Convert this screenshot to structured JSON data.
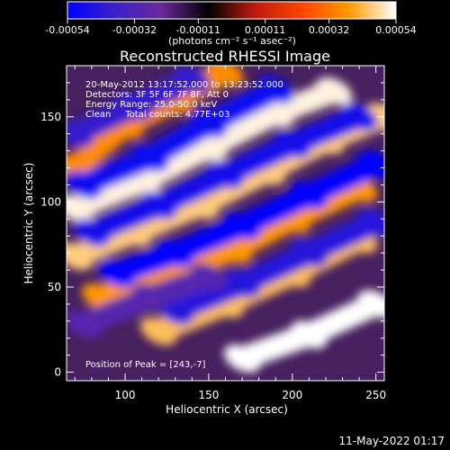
{
  "chart_data": {
    "type": "heatmap",
    "title": "Reconstructed RHESSI Image",
    "xlabel": "Heliocentric X (arcsec)",
    "ylabel": "Heliocentric Y (arcsec)",
    "xlim": [
      65,
      255
    ],
    "ylim": [
      -5,
      180
    ],
    "x_ticks": [
      100,
      150,
      200,
      250
    ],
    "y_ticks": [
      0,
      50,
      100,
      150
    ],
    "x_tick_labels": [
      "100",
      "150",
      "200",
      "250"
    ],
    "y_tick_labels": [
      "0",
      "50",
      "100",
      "150"
    ],
    "colorbar": {
      "range": [
        -0.00054,
        0.00054
      ],
      "tick_values": [
        -0.00054,
        -0.00032,
        -0.00011,
        0.00011,
        0.00032,
        0.00054
      ],
      "tick_labels": [
        "-0.00054",
        "-0.00032",
        "-0.00011",
        "0.00011",
        "0.00032",
        "0.00054"
      ],
      "unit_text": "(photons cm⁻² s⁻¹ asec⁻²)",
      "colors": [
        "#0000ff",
        "#3b20c8",
        "#6a2a9a",
        "#000000",
        "#c01a10",
        "#ff4400",
        "#ff9a00",
        "#ffffff"
      ]
    },
    "annotations": {
      "date_range": "20-May-2012 13:17:52.000 to 13:23:52.000",
      "detectors": "Detectors: 3F 5F 6F 7F 8F, Att 0",
      "energy": "Energy Range: 25.0-50.0 keV",
      "method": "Clean     Total counts: 4.77E+03",
      "peak": "Position of Peak = [243,-7]"
    },
    "series": [
      {
        "type": "positive_band",
        "points": [
          [
            70,
            120
          ],
          [
            100,
            145
          ],
          [
            130,
            160
          ],
          [
            160,
            176
          ]
        ],
        "level": 0.00036
      },
      {
        "type": "positive_band",
        "points": [
          [
            70,
            96
          ],
          [
            110,
            112
          ],
          [
            150,
            132
          ],
          [
            190,
            152
          ],
          [
            225,
            165
          ]
        ],
        "level": 0.00052
      },
      {
        "type": "positive_band",
        "points": [
          [
            70,
            68
          ],
          [
            105,
            82
          ],
          [
            145,
            98
          ],
          [
            185,
            118
          ],
          [
            220,
            136
          ],
          [
            255,
            150
          ]
        ],
        "level": 0.00046
      },
      {
        "type": "positive_band",
        "points": [
          [
            85,
            44
          ],
          [
            125,
            58
          ],
          [
            165,
            72
          ],
          [
            200,
            90
          ],
          [
            240,
            108
          ]
        ],
        "level": 0.00038
      },
      {
        "type": "positive_band",
        "points": [
          [
            120,
            24
          ],
          [
            160,
            40
          ],
          [
            200,
            58
          ],
          [
            240,
            78
          ]
        ],
        "level": 0.00044
      },
      {
        "type": "positive_band",
        "points": [
          [
            170,
            8
          ],
          [
            210,
            22
          ],
          [
            250,
            40
          ]
        ],
        "level": 0.00054
      },
      {
        "type": "negative_band",
        "points": [
          [
            70,
            140
          ],
          [
            105,
            156
          ],
          [
            140,
            172
          ]
        ],
        "level": -0.0004
      },
      {
        "type": "negative_band",
        "points": [
          [
            75,
            110
          ],
          [
            115,
            126
          ],
          [
            150,
            146
          ],
          [
            190,
            166
          ]
        ],
        "level": -0.0005
      },
      {
        "type": "negative_band",
        "points": [
          [
            80,
            82
          ],
          [
            120,
            98
          ],
          [
            160,
            116
          ],
          [
            200,
            134
          ],
          [
            240,
            150
          ]
        ],
        "level": -0.00048
      },
      {
        "type": "negative_band",
        "points": [
          [
            95,
            58
          ],
          [
            130,
            70
          ],
          [
            170,
            86
          ],
          [
            210,
            104
          ],
          [
            250,
            122
          ]
        ],
        "level": -0.00054
      },
      {
        "type": "negative_band",
        "points": [
          [
            130,
            36
          ],
          [
            170,
            52
          ],
          [
            210,
            70
          ],
          [
            250,
            88
          ]
        ],
        "level": -0.00044
      },
      {
        "type": "negative_band",
        "points": [
          [
            75,
            28
          ],
          [
            115,
            44
          ],
          [
            150,
            56
          ]
        ],
        "level": -0.0003
      }
    ]
  },
  "footer": {
    "timestamp": "11-May-2022 01:17"
  }
}
